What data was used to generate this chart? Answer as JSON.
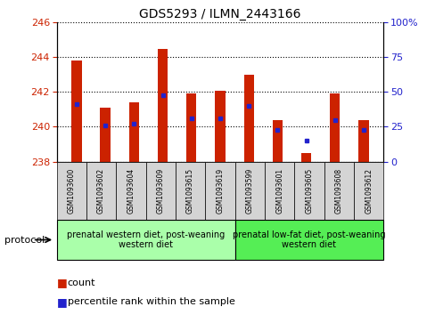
{
  "title": "GDS5293 / ILMN_2443166",
  "samples": [
    "GSM1093600",
    "GSM1093602",
    "GSM1093604",
    "GSM1093609",
    "GSM1093615",
    "GSM1093619",
    "GSM1093599",
    "GSM1093601",
    "GSM1093605",
    "GSM1093608",
    "GSM1093612"
  ],
  "count_values": [
    243.8,
    241.1,
    241.4,
    244.5,
    241.9,
    242.1,
    243.0,
    240.4,
    238.5,
    241.9,
    240.4
  ],
  "percentile_values": [
    241.3,
    240.1,
    240.2,
    241.8,
    240.5,
    240.5,
    241.2,
    239.8,
    239.2,
    240.4,
    239.8
  ],
  "baseline": 238,
  "ylim_left": [
    238,
    246
  ],
  "yticks_left": [
    238,
    240,
    242,
    244,
    246
  ],
  "yticks_right": [
    0,
    25,
    50,
    75,
    100
  ],
  "bar_color": "#cc2200",
  "marker_color": "#2222cc",
  "group1_label": "prenatal western diet, post-weaning\nwestern diet",
  "group2_label": "prenatal low-fat diet, post-weaning\nwestern diet",
  "group1_count": 6,
  "group2_count": 5,
  "group1_color": "#aaffaa",
  "group2_color": "#55ee55",
  "ticklabel_bg": "#d4d4d4",
  "legend_count": "count",
  "legend_pct": "percentile rank within the sample",
  "left_color": "#cc2200",
  "right_color": "#2222cc"
}
